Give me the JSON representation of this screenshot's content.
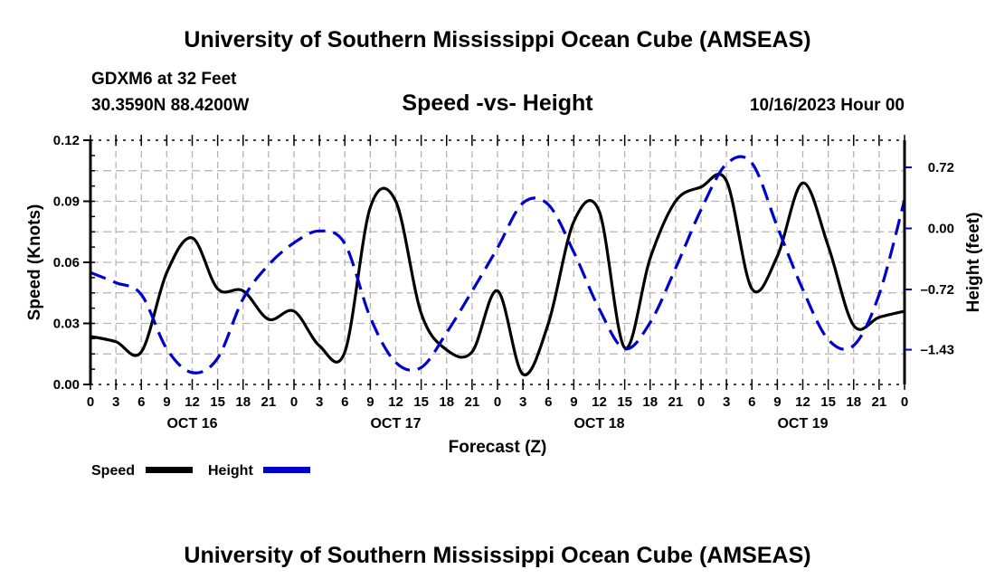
{
  "header": {
    "title": "University of Southern Mississippi Ocean Cube (AMSEAS)",
    "station": "GDXM6 at 32 Feet",
    "coords": "30.3590N  88.4200W",
    "chart_title": "Speed -vs- Height",
    "run_time": "10/16/2023 Hour 00"
  },
  "footer": {
    "title": "University of Southern Mississippi Ocean Cube (AMSEAS)"
  },
  "legend": {
    "speed_label": "Speed",
    "height_label": "Height"
  },
  "colors": {
    "speed": "#000000",
    "height": "#0000cc",
    "grid": "#b4b4b4"
  },
  "chart_data": {
    "type": "line",
    "title": "Speed -vs- Height",
    "xlabel": "Forecast (Z)",
    "ylabel": "Speed (Knots)",
    "y2label": "Height (feet)",
    "x_hours": [
      0,
      3,
      6,
      9,
      12,
      15,
      18,
      21,
      24,
      27,
      30,
      33,
      36,
      39,
      42,
      45,
      48,
      51,
      54,
      57,
      60,
      63,
      66,
      69,
      72,
      75,
      78,
      81,
      84,
      87,
      90,
      93,
      96
    ],
    "x_tick_labels": [
      "0",
      "3",
      "6",
      "9",
      "12",
      "15",
      "18",
      "21",
      "0",
      "3",
      "6",
      "9",
      "12",
      "15",
      "18",
      "21",
      "0",
      "3",
      "6",
      "9",
      "12",
      "15",
      "18",
      "21",
      "0",
      "3",
      "6",
      "9",
      "12",
      "15",
      "18",
      "21",
      "0"
    ],
    "date_labels": [
      {
        "label": "OCT 16",
        "hour": 12
      },
      {
        "label": "OCT 17",
        "hour": 36
      },
      {
        "label": "OCT 18",
        "hour": 60
      },
      {
        "label": "OCT 19",
        "hour": 84
      }
    ],
    "xlim": [
      0,
      96
    ],
    "ylim": [
      0,
      0.12
    ],
    "y_ticks": [
      "0.00",
      "0.03",
      "0.06",
      "0.09",
      "0.12"
    ],
    "y_tick_values": [
      0,
      0.03,
      0.06,
      0.09,
      0.12
    ],
    "y2lim": [
      -1.84,
      1.04
    ],
    "y2_ticks": [
      "0.72",
      "0.00",
      "–0.72",
      "–1.43"
    ],
    "y2_tick_values": [
      0.72,
      0.0,
      -0.72,
      -1.43
    ],
    "grid": true,
    "legend_position": "bottom-left",
    "series": [
      {
        "name": "Speed",
        "axis": "left",
        "style": "solid",
        "values": [
          0.0236,
          0.021,
          0.016,
          0.055,
          0.072,
          0.047,
          0.046,
          0.032,
          0.036,
          0.019,
          0.016,
          0.087,
          0.09,
          0.035,
          0.017,
          0.016,
          0.046,
          0.005,
          0.03,
          0.08,
          0.085,
          0.018,
          0.062,
          0.09,
          0.097,
          0.1,
          0.047,
          0.063,
          0.099,
          0.068,
          0.029,
          0.033,
          0.036
        ]
      },
      {
        "name": "Height",
        "axis": "right",
        "style": "dashed",
        "values": [
          -0.52,
          -0.64,
          -0.78,
          -1.42,
          -1.7,
          -1.53,
          -0.83,
          -0.43,
          -0.17,
          -0.03,
          -0.18,
          -1.05,
          -1.58,
          -1.64,
          -1.23,
          -0.74,
          -0.23,
          0.3,
          0.28,
          -0.28,
          -0.95,
          -1.42,
          -1.11,
          -0.47,
          0.22,
          0.76,
          0.77,
          0.02,
          -0.72,
          -1.31,
          -1.38,
          -0.78,
          0.34
        ]
      }
    ]
  }
}
